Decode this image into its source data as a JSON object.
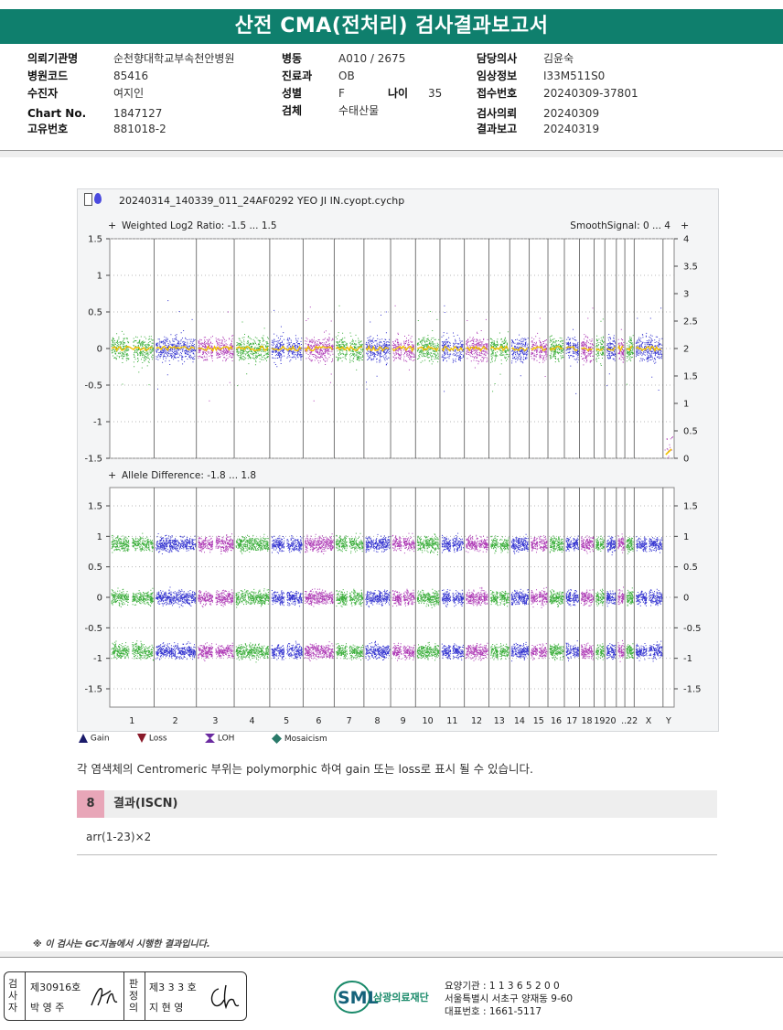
{
  "title": "산전 CMA(전처리) 검사결과보고서",
  "info": {
    "col1": [
      {
        "label": "의뢰기관명",
        "value": "순천향대학교부속천안병원"
      },
      {
        "label": "병원코드",
        "value": "85416"
      },
      {
        "label": "수진자",
        "value": "여지인"
      },
      {
        "label": "Chart No.",
        "value": "1847127"
      },
      {
        "label": "고유번호",
        "value": "881018-2"
      }
    ],
    "col2": [
      {
        "label": "병동",
        "value": "A010 / 2675"
      },
      {
        "label": "진료과",
        "value": "OB"
      },
      {
        "label": "성별",
        "value": "F"
      },
      {
        "label": "검체",
        "value": "수태산물"
      }
    ],
    "age": {
      "label": "나이",
      "value": "35"
    },
    "col3": [
      {
        "label": "담당의사",
        "value": "김윤숙"
      },
      {
        "label": "임상정보",
        "value": "I33M511S0"
      },
      {
        "label": "접수번호",
        "value": "20240309-37801"
      },
      {
        "label": "검사의뢰",
        "value": "20240309"
      },
      {
        "label": "결과보고",
        "value": "20240319"
      }
    ]
  },
  "plot": {
    "filename": "20240314_140339_011_24AF0292 YEO JI IN.cyopt.cychp",
    "top_panel": {
      "label": "Weighted Log2 Ratio: -1.5 ... 1.5",
      "right_label": "SmoothSignal: 0 ... 4",
      "left_ticks": [
        "1.5",
        "1",
        "0.5",
        "0",
        "-0.5",
        "-1",
        "-1.5"
      ],
      "right_ticks": [
        "4",
        "3.5",
        "3",
        "2.5",
        "2",
        "1.5",
        "1",
        "0.5",
        "0"
      ]
    },
    "bottom_panel": {
      "label": "Allele Difference: -1.8 ... 1.8",
      "ticks": [
        "1.5",
        "1",
        "0.5",
        "0",
        "-0.5",
        "-1",
        "-1.5"
      ]
    },
    "chromosomes": [
      "1",
      "2",
      "3",
      "4",
      "5",
      "6",
      "7",
      "8",
      "9",
      "10",
      "11",
      "12",
      "13",
      "14",
      "15",
      "16",
      "17",
      "18",
      "19",
      "20",
      "21",
      "22",
      "X",
      "Y"
    ],
    "chrom_labels": [
      "1",
      "2",
      "3",
      "4",
      "5",
      "6",
      "7",
      "8",
      "9",
      "10",
      "11",
      "12",
      "13",
      "14",
      "15",
      "16",
      "17",
      "18",
      "19",
      "20",
      "..22",
      "X",
      "Y"
    ],
    "chrom_colors": [
      "#18a018",
      "#1010c8",
      "#a018a8"
    ],
    "smooth_color": "#f0c000"
  },
  "legend": [
    {
      "icon": "gain-triangle-icon",
      "label": "Gain",
      "color": "#1a1a6a"
    },
    {
      "icon": "loss-triangle-icon",
      "label": "Loss",
      "color": "#8a1a2a"
    },
    {
      "icon": "loh-bowtie-icon",
      "label": "LOH",
      "color": "#6a2aa0"
    },
    {
      "icon": "mosaicism-diamond-icon",
      "label": "Mosaicism",
      "color": "#2a7a6a"
    }
  ],
  "note": "각 염색체의 Centromeric 부위는 polymorphic 하여 gain 또는 loss로 표시 될 수 있습니다.",
  "section": {
    "number": "8",
    "title": "결과(ISCN)"
  },
  "result": "arr(1-23)×2",
  "footnote": "※ 이 검사는 GC지놈에서 시행한 결과입니다.",
  "signatures": {
    "examiner_label": "검사자",
    "examiner_license": "제30916호",
    "examiner_name": "박 영 주",
    "reviewer_label": "판정의",
    "reviewer_license": "제3 3 3 호",
    "reviewer_name": "지 현 영"
  },
  "org": {
    "logo": "SML",
    "name": "삼광의료재단",
    "line1": "요양기관 : 1 1 3 6 5 2 0 0",
    "line2": "서울특별시 서초구 양재동 9-60",
    "line3": "대표번호 : 1661-5117"
  }
}
